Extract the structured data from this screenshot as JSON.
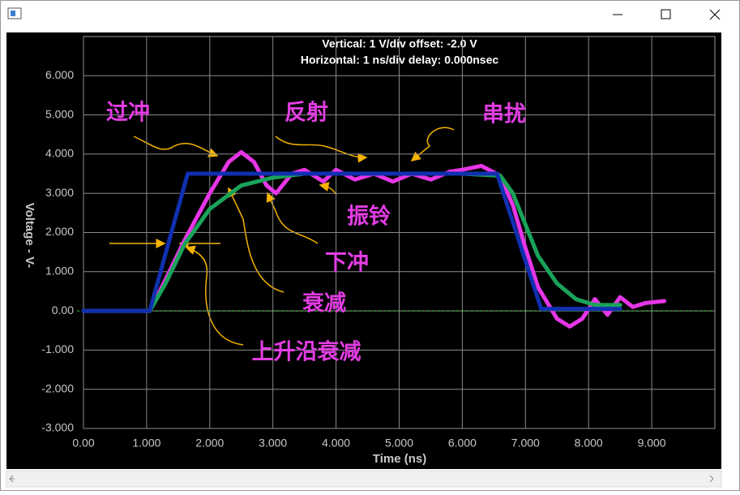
{
  "chart_data": {
    "type": "line",
    "header": [
      "Vertical: 1  V/div  offset: -2.0 V",
      "Horizontal: 1 ns/div  delay: 0.000nsec"
    ],
    "x_label": "Time  (ns)",
    "y_label": "Voltage  - V-",
    "xlim": [
      0,
      10
    ],
    "ylim": [
      -3,
      7
    ],
    "xticks": [
      {
        "value": 0,
        "label": "0.00"
      },
      {
        "value": 1,
        "label": "1.000"
      },
      {
        "value": 2,
        "label": "2.000"
      },
      {
        "value": 3,
        "label": "3.000"
      },
      {
        "value": 4,
        "label": "4.000"
      },
      {
        "value": 5,
        "label": "5.000"
      },
      {
        "value": 6,
        "label": "6.000"
      },
      {
        "value": 7,
        "label": "7.000"
      },
      {
        "value": 8,
        "label": "8.000"
      },
      {
        "value": 9,
        "label": "9.000"
      }
    ],
    "yticks": [
      {
        "value": -3,
        "label": "-3.000"
      },
      {
        "value": -2,
        "label": "-2.000"
      },
      {
        "value": -1,
        "label": "-1.000"
      },
      {
        "value": 0,
        "label": "0.00"
      },
      {
        "value": 1,
        "label": "1.000"
      },
      {
        "value": 2,
        "label": "2.000"
      },
      {
        "value": 3,
        "label": "3.000"
      },
      {
        "value": 4,
        "label": "4.000"
      },
      {
        "value": 5,
        "label": "5.000"
      },
      {
        "value": 6,
        "label": "6.000"
      }
    ],
    "grid": true,
    "series": [
      {
        "color": "#e636e6",
        "x": [
          0,
          1.05,
          1.3,
          1.6,
          2.0,
          2.3,
          2.5,
          2.7,
          2.9,
          3.05,
          3.3,
          3.5,
          3.8,
          4.0,
          4.3,
          4.6,
          4.9,
          5.2,
          5.5,
          5.8,
          6.0,
          6.3,
          6.6,
          6.8,
          7.0,
          7.2,
          7.5,
          7.7,
          7.9,
          8.1,
          8.3,
          8.5,
          8.7,
          8.9,
          9.2
        ],
        "values": [
          0,
          0,
          0.8,
          1.8,
          3.0,
          3.8,
          4.05,
          3.8,
          3.2,
          3.0,
          3.5,
          3.6,
          3.3,
          3.6,
          3.35,
          3.5,
          3.3,
          3.5,
          3.35,
          3.55,
          3.6,
          3.7,
          3.45,
          2.7,
          1.6,
          0.6,
          -0.2,
          -0.4,
          -0.2,
          0.3,
          -0.1,
          0.35,
          0.1,
          0.2,
          0.25
        ]
      },
      {
        "color": "#1aa35a",
        "x": [
          0,
          1.05,
          1.3,
          1.6,
          2.0,
          2.5,
          3.0,
          3.5,
          4.0,
          5.0,
          6.0,
          6.6,
          6.8,
          7.0,
          7.2,
          7.5,
          7.8,
          8.1,
          8.5
        ],
        "values": [
          0,
          0,
          0.7,
          1.7,
          2.6,
          3.2,
          3.4,
          3.5,
          3.5,
          3.5,
          3.5,
          3.45,
          3.0,
          2.2,
          1.4,
          0.7,
          0.3,
          0.15,
          0.15
        ]
      },
      {
        "color": "#1030b0",
        "x": [
          0,
          1.05,
          1.65,
          6.55,
          7.25,
          8.5
        ],
        "values": [
          0,
          0,
          3.5,
          3.5,
          0.05,
          0.05
        ]
      }
    ],
    "annotations": [
      "过冲",
      "反射",
      "串扰",
      "振铃",
      "下冲",
      "衰减",
      "上升沿衰减"
    ]
  }
}
